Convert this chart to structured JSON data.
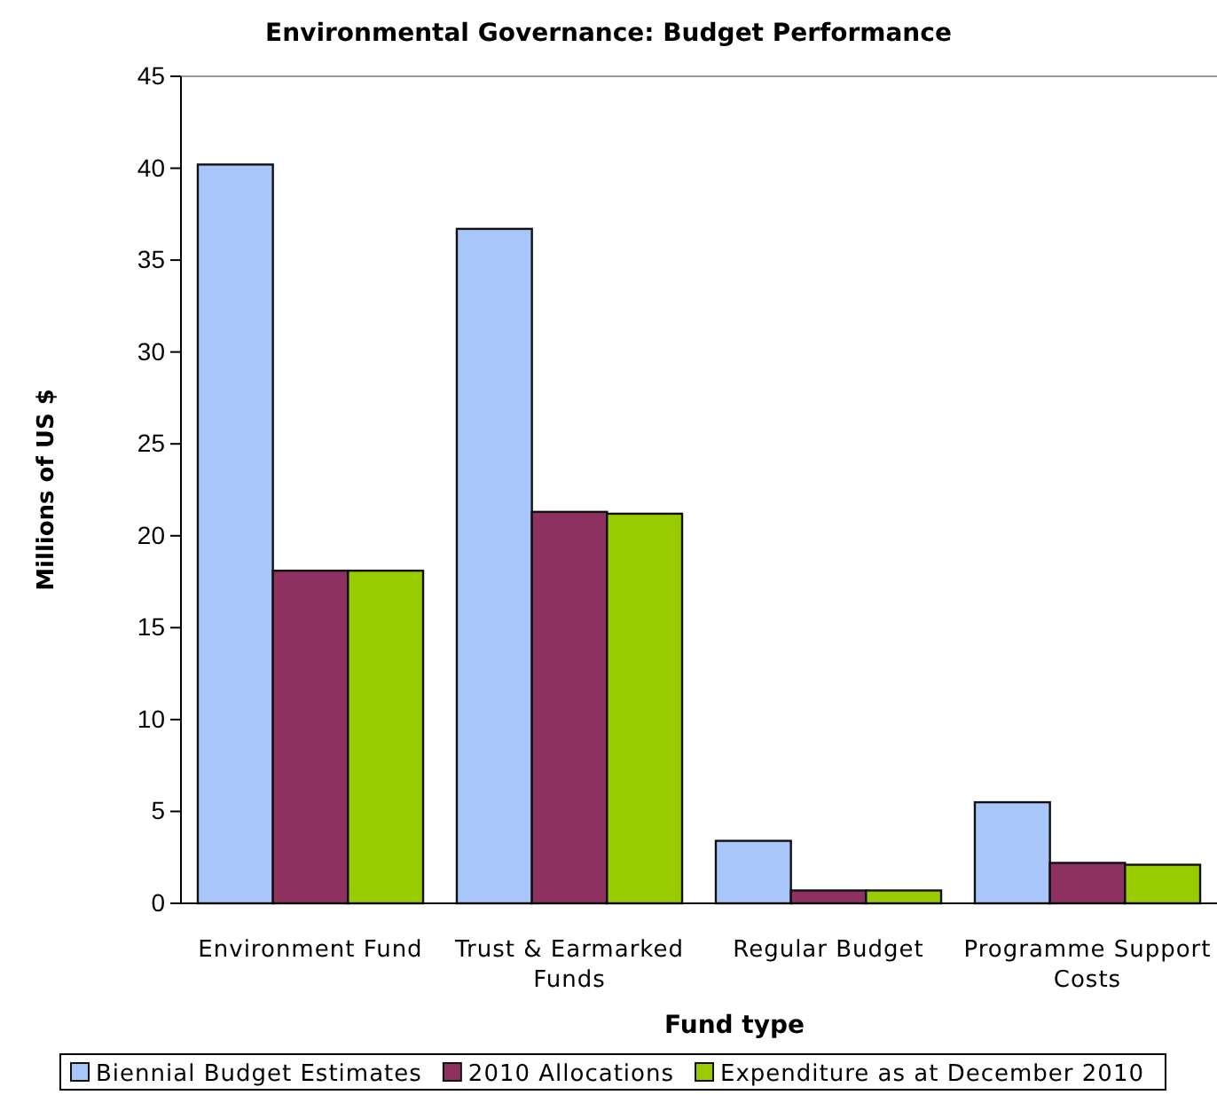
{
  "chart_data": {
    "type": "bar",
    "title": "Environmental Governance: Budget  Performance",
    "xlabel": "Fund type",
    "ylabel": "Millions of US $",
    "categories": [
      "Environment Fund",
      "Trust & Earmarked Funds",
      "Regular Budget",
      "Programme Support Costs"
    ],
    "series": [
      {
        "name": "Biennial Budget Estimates",
        "color": "#a9c6fb",
        "values": [
          40.2,
          36.7,
          3.4,
          5.5
        ]
      },
      {
        "name": "2010 Allocations",
        "color": "#8e3160",
        "values": [
          18.1,
          21.3,
          0.7,
          2.2
        ]
      },
      {
        "name": "Expenditure as at December 2010",
        "color": "#99cc00",
        "values": [
          18.1,
          21.2,
          0.7,
          2.1
        ]
      }
    ],
    "ylim": [
      0,
      45
    ],
    "yticks": [
      0,
      5,
      10,
      15,
      20,
      25,
      30,
      35,
      40,
      45
    ],
    "legend": "bottom"
  }
}
